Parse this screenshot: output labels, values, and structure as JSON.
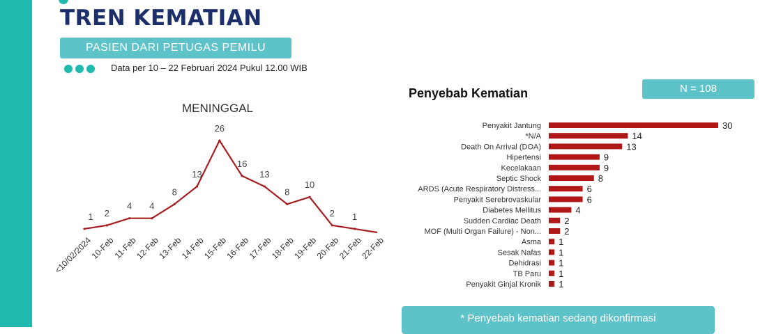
{
  "header": {
    "title": "TREN KEMATIAN",
    "subtitle": "PASIEN DARI PETUGAS PEMILU",
    "date_note": "Data per 10 – 22 Februari 2024 Pukul 12.00  WIB"
  },
  "right_panel": {
    "title": "Penyebab Kematian",
    "n_label": "N = 108"
  },
  "footer_note": "* Penyebab kematian sedang dikonfirmasi",
  "colors": {
    "accent": "#1fb9ae",
    "pill": "#5ec3c9",
    "title": "#1c2f6b",
    "line": "#a61e22",
    "bar": "#b01717"
  },
  "chart_data": [
    {
      "type": "line",
      "title": "MENINGGAL",
      "categories": [
        "<10/02/2024",
        "10-Feb",
        "11-Feb",
        "12-Feb",
        "13-Feb",
        "14-Feb",
        "15-Feb",
        "16-Feb",
        "17-Feb",
        "18-Feb",
        "19-Feb",
        "20-Feb",
        "21-Feb",
        "22-Feb"
      ],
      "values": [
        1,
        2,
        4,
        4,
        8,
        13,
        26,
        16,
        13,
        8,
        10,
        2,
        1,
        null
      ],
      "ylim": [
        0,
        26
      ],
      "grid": false
    },
    {
      "type": "bar",
      "orientation": "horizontal",
      "categories": [
        "Penyakit Jantung",
        "*N/A",
        "Death On Arrival (DOA)",
        "Hipertensi",
        "Kecelakaan",
        "Septic Shock",
        "ARDS (Acute Respiratory Distress...",
        "Penyakit Serebrovaskular",
        "Diabetes Mellitus",
        "Sudden Cardiac Death",
        "MOF (Multi Organ Failure) - Non...",
        "Asma",
        "Sesak Nafas",
        "Dehidrasi",
        "TB Paru",
        "Penyakit Ginjal Kronik"
      ],
      "values": [
        30,
        14,
        13,
        9,
        9,
        8,
        6,
        6,
        4,
        2,
        2,
        1,
        1,
        1,
        1,
        1
      ],
      "grid": false
    }
  ]
}
